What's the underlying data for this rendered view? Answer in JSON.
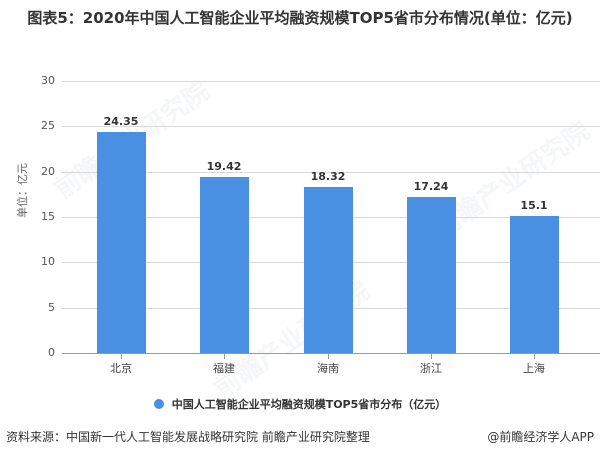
{
  "title": "图表5：2020年中国人工智能企业平均融资规模TOP5省市分布情况(单位：亿元)",
  "watermark": "前瞻产业研究院",
  "chart_data": {
    "type": "bar",
    "title": "图表5：2020年中国人工智能企业平均融资规模TOP5省市分布情况(单位：亿元)",
    "categories": [
      "北京",
      "福建",
      "海南",
      "浙江",
      "上海"
    ],
    "series": [
      {
        "name": "中国人工智能企业平均融资规模TOP5省市分布（亿元）",
        "values": [
          24.35,
          19.42,
          18.32,
          17.24,
          15.1
        ],
        "color": "#4a90e2"
      }
    ],
    "value_labels": [
      "24.35",
      "19.42",
      "18.32",
      "17.24",
      "15.1"
    ],
    "xlabel": "",
    "ylabel": "单位：亿元",
    "ylim": [
      0,
      30
    ],
    "yticks": [
      "0",
      "5",
      "10",
      "15",
      "20",
      "25",
      "30"
    ],
    "grid": true,
    "legend_position": "bottom"
  },
  "legend": {
    "label": "中国人工智能企业平均融资规模TOP5省市分布（亿元）"
  },
  "footer": {
    "source": "资料来源：中国新一代人工智能发展战略研究院 前瞻产业研究院整理",
    "credit": "@前瞻经济学人APP"
  }
}
